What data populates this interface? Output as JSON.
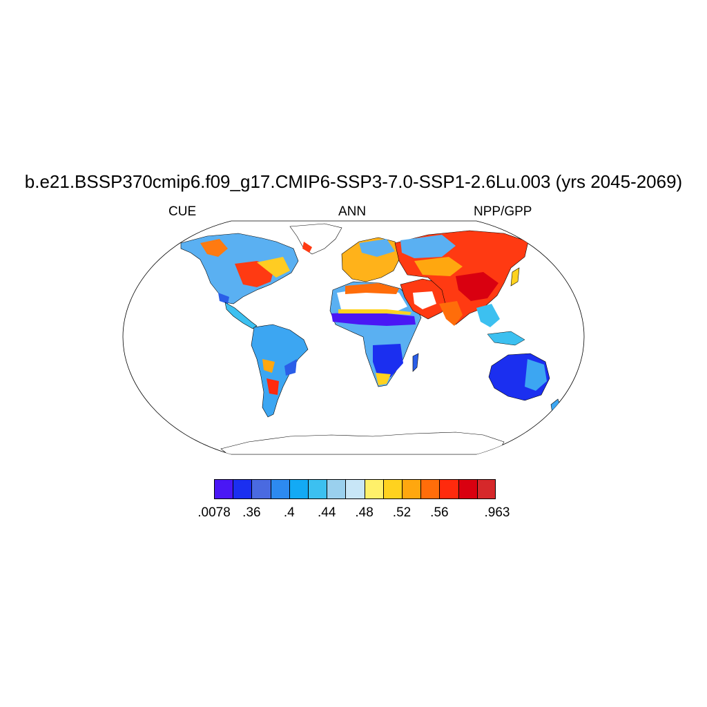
{
  "header": {
    "title": "b.e21.BSSP370cmip6.f09_g17.CMIP6-SSP3-7.0-SSP1-2.6Lu.003 (yrs 2045-2069)",
    "left_label": "CUE",
    "center_label": "ANN",
    "right_label": "NPP/GPP"
  },
  "colorbar": {
    "colors": [
      "#4a17f5",
      "#1b2ff0",
      "#4a6ae0",
      "#2d8af0",
      "#13aaf5",
      "#3cc0f0",
      "#9ad0ee",
      "#c8e6f7",
      "#fff06a",
      "#ffd21f",
      "#ffa70f",
      "#ff6d0a",
      "#ff2a0d",
      "#d90010",
      "#d6282a"
    ],
    "labels": [
      ".0078",
      ".36",
      ".4",
      ".44",
      ".48",
      ".52",
      ".56",
      ".963"
    ]
  },
  "map": {
    "projection": "Robinson",
    "land_outline_color": "#000000"
  }
}
